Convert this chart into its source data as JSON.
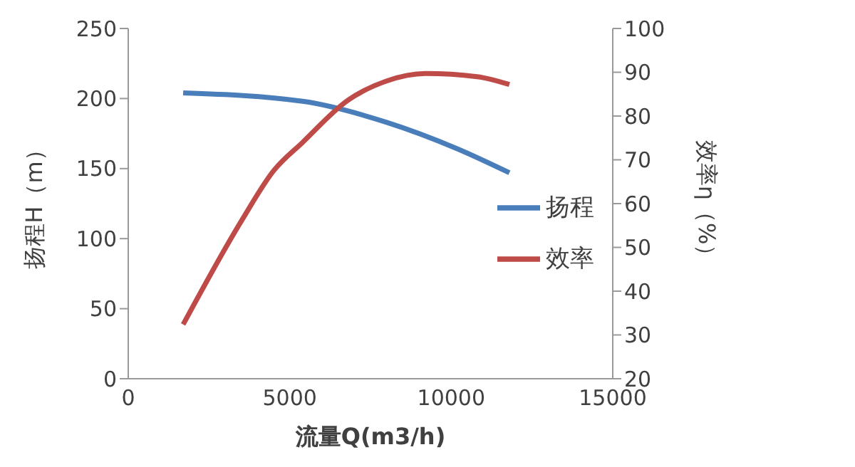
{
  "chart_data": {
    "type": "line",
    "xlabel": "流量Q(m3/h)",
    "ylabel": "扬程H（m）",
    "y2label": "效率η（%）",
    "xlim": [
      0,
      15000
    ],
    "xticks": [
      0,
      5000,
      10000,
      15000
    ],
    "ylim": [
      0,
      250
    ],
    "yticks": [
      0,
      50,
      100,
      150,
      200,
      250
    ],
    "y2lim": [
      20,
      100
    ],
    "y2ticks": [
      20,
      30,
      40,
      50,
      60,
      70,
      80,
      90,
      100
    ],
    "grid": false,
    "legend": "right",
    "marker": "none",
    "line_style": "solid",
    "series": [
      {
        "name": "扬程",
        "color": "#4a7ebb",
        "x": [
          1700,
          5400,
          8000,
          10200,
          11800
        ],
        "values": [
          204,
          198,
          183,
          164,
          147
        ]
      },
      {
        "name": "效率",
        "color": "#be4b48",
        "axis": "y2",
        "x": [
          1700,
          3500,
          4500,
          5400,
          6800,
          8000,
          9200,
          10800,
          11800
        ],
        "values": [
          32.4,
          56,
          67.5,
          74,
          83.6,
          88,
          89.7,
          89,
          87.2
        ]
      }
    ]
  }
}
